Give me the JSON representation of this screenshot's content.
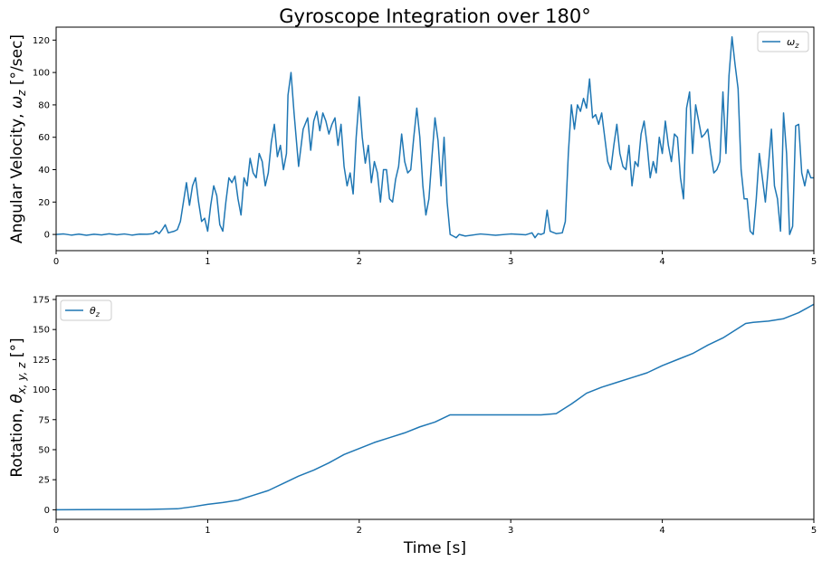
{
  "chart_data": [
    {
      "type": "line",
      "title": "Gyroscope Integration over 180°",
      "xlabel": "",
      "ylabel": "Angular Velocity, ω_z [°/sec]",
      "ylabel_parts": {
        "pre": "Angular Velocity, ",
        "sym": "ω",
        "sub": "z",
        "post": " [°/sec]"
      },
      "xlim": [
        0,
        5
      ],
      "ylim": [
        -10,
        128
      ],
      "xticks": [
        0,
        1,
        2,
        3,
        4,
        5
      ],
      "yticks": [
        0,
        20,
        40,
        60,
        80,
        100,
        120
      ],
      "grid": false,
      "legend_position": "upper-right",
      "series": [
        {
          "name": "ω_z",
          "legend_sym": "ω",
          "legend_sub": "z",
          "color": "#1f77b4",
          "points": [
            [
              0,
              0
            ],
            [
              0.05,
              0.3
            ],
            [
              0.1,
              -0.4
            ],
            [
              0.15,
              0.2
            ],
            [
              0.2,
              -0.5
            ],
            [
              0.25,
              0.1
            ],
            [
              0.3,
              -0.3
            ],
            [
              0.35,
              0.4
            ],
            [
              0.4,
              -0.2
            ],
            [
              0.45,
              0.3
            ],
            [
              0.5,
              -0.4
            ],
            [
              0.55,
              0.2
            ],
            [
              0.6,
              0.1
            ],
            [
              0.64,
              0.5
            ],
            [
              0.66,
              2
            ],
            [
              0.68,
              0.5
            ],
            [
              0.7,
              3
            ],
            [
              0.72,
              6
            ],
            [
              0.74,
              1
            ],
            [
              0.78,
              2
            ],
            [
              0.8,
              3
            ],
            [
              0.82,
              8
            ],
            [
              0.84,
              20
            ],
            [
              0.86,
              32
            ],
            [
              0.88,
              18
            ],
            [
              0.9,
              30
            ],
            [
              0.92,
              35
            ],
            [
              0.94,
              20
            ],
            [
              0.96,
              8
            ],
            [
              0.98,
              10
            ],
            [
              1.0,
              2
            ],
            [
              1.02,
              18
            ],
            [
              1.04,
              30
            ],
            [
              1.06,
              24
            ],
            [
              1.08,
              6
            ],
            [
              1.1,
              2
            ],
            [
              1.12,
              20
            ],
            [
              1.14,
              35
            ],
            [
              1.16,
              32
            ],
            [
              1.18,
              36
            ],
            [
              1.2,
              22
            ],
            [
              1.22,
              12
            ],
            [
              1.24,
              35
            ],
            [
              1.26,
              30
            ],
            [
              1.28,
              47
            ],
            [
              1.3,
              38
            ],
            [
              1.32,
              35
            ],
            [
              1.34,
              50
            ],
            [
              1.36,
              45
            ],
            [
              1.38,
              30
            ],
            [
              1.4,
              38
            ],
            [
              1.42,
              57
            ],
            [
              1.44,
              68
            ],
            [
              1.46,
              48
            ],
            [
              1.48,
              55
            ],
            [
              1.5,
              40
            ],
            [
              1.52,
              50
            ],
            [
              1.53,
              86
            ],
            [
              1.55,
              100
            ],
            [
              1.57,
              75
            ],
            [
              1.6,
              42
            ],
            [
              1.63,
              65
            ],
            [
              1.66,
              72
            ],
            [
              1.68,
              52
            ],
            [
              1.7,
              70
            ],
            [
              1.72,
              76
            ],
            [
              1.74,
              64
            ],
            [
              1.76,
              75
            ],
            [
              1.78,
              70
            ],
            [
              1.8,
              62
            ],
            [
              1.82,
              68
            ],
            [
              1.84,
              72
            ],
            [
              1.86,
              55
            ],
            [
              1.88,
              68
            ],
            [
              1.9,
              42
            ],
            [
              1.92,
              30
            ],
            [
              1.94,
              38
            ],
            [
              1.96,
              25
            ],
            [
              1.98,
              60
            ],
            [
              2.0,
              85
            ],
            [
              2.02,
              60
            ],
            [
              2.04,
              44
            ],
            [
              2.06,
              55
            ],
            [
              2.08,
              32
            ],
            [
              2.1,
              45
            ],
            [
              2.12,
              38
            ],
            [
              2.14,
              20
            ],
            [
              2.16,
              40
            ],
            [
              2.18,
              40
            ],
            [
              2.2,
              22
            ],
            [
              2.22,
              20
            ],
            [
              2.24,
              34
            ],
            [
              2.26,
              42
            ],
            [
              2.28,
              62
            ],
            [
              2.3,
              45
            ],
            [
              2.32,
              38
            ],
            [
              2.34,
              40
            ],
            [
              2.36,
              60
            ],
            [
              2.38,
              78
            ],
            [
              2.4,
              60
            ],
            [
              2.42,
              30
            ],
            [
              2.44,
              12
            ],
            [
              2.46,
              22
            ],
            [
              2.48,
              48
            ],
            [
              2.5,
              72
            ],
            [
              2.52,
              58
            ],
            [
              2.54,
              30
            ],
            [
              2.56,
              60
            ],
            [
              2.58,
              20
            ],
            [
              2.6,
              0
            ],
            [
              2.62,
              -1
            ],
            [
              2.64,
              -2
            ],
            [
              2.66,
              0
            ],
            [
              2.7,
              -1
            ],
            [
              2.8,
              0.3
            ],
            [
              2.9,
              -0.5
            ],
            [
              3.0,
              0.3
            ],
            [
              3.1,
              -0.2
            ],
            [
              3.14,
              1
            ],
            [
              3.16,
              -2
            ],
            [
              3.18,
              0.5
            ],
            [
              3.2,
              0
            ],
            [
              3.22,
              0.8
            ],
            [
              3.24,
              15
            ],
            [
              3.26,
              2
            ],
            [
              3.3,
              0.5
            ],
            [
              3.34,
              1
            ],
            [
              3.36,
              8
            ],
            [
              3.38,
              50
            ],
            [
              3.4,
              80
            ],
            [
              3.42,
              65
            ],
            [
              3.44,
              80
            ],
            [
              3.46,
              76
            ],
            [
              3.48,
              84
            ],
            [
              3.5,
              78
            ],
            [
              3.52,
              96
            ],
            [
              3.54,
              72
            ],
            [
              3.56,
              74
            ],
            [
              3.58,
              68
            ],
            [
              3.6,
              75
            ],
            [
              3.62,
              60
            ],
            [
              3.64,
              45
            ],
            [
              3.66,
              40
            ],
            [
              3.68,
              55
            ],
            [
              3.7,
              68
            ],
            [
              3.72,
              50
            ],
            [
              3.74,
              42
            ],
            [
              3.76,
              40
            ],
            [
              3.78,
              55
            ],
            [
              3.8,
              30
            ],
            [
              3.82,
              45
            ],
            [
              3.84,
              42
            ],
            [
              3.86,
              62
            ],
            [
              3.88,
              70
            ],
            [
              3.9,
              55
            ],
            [
              3.92,
              35
            ],
            [
              3.94,
              45
            ],
            [
              3.96,
              38
            ],
            [
              3.98,
              60
            ],
            [
              4.0,
              50
            ],
            [
              4.02,
              70
            ],
            [
              4.04,
              55
            ],
            [
              4.06,
              45
            ],
            [
              4.08,
              62
            ],
            [
              4.1,
              60
            ],
            [
              4.12,
              35
            ],
            [
              4.14,
              22
            ],
            [
              4.16,
              78
            ],
            [
              4.18,
              88
            ],
            [
              4.2,
              50
            ],
            [
              4.22,
              80
            ],
            [
              4.24,
              70
            ],
            [
              4.26,
              60
            ],
            [
              4.28,
              62
            ],
            [
              4.3,
              65
            ],
            [
              4.32,
              50
            ],
            [
              4.34,
              38
            ],
            [
              4.36,
              40
            ],
            [
              4.38,
              45
            ],
            [
              4.4,
              88
            ],
            [
              4.42,
              50
            ],
            [
              4.44,
              98
            ],
            [
              4.46,
              122
            ],
            [
              4.48,
              105
            ],
            [
              4.5,
              90
            ],
            [
              4.52,
              40
            ],
            [
              4.54,
              22
            ],
            [
              4.56,
              22
            ],
            [
              4.58,
              2
            ],
            [
              4.6,
              0
            ],
            [
              4.62,
              22
            ],
            [
              4.64,
              50
            ],
            [
              4.66,
              35
            ],
            [
              4.68,
              20
            ],
            [
              4.7,
              42
            ],
            [
              4.72,
              65
            ],
            [
              4.74,
              30
            ],
            [
              4.76,
              22
            ],
            [
              4.78,
              2
            ],
            [
              4.8,
              75
            ],
            [
              4.82,
              50
            ],
            [
              4.84,
              0
            ],
            [
              4.86,
              5
            ],
            [
              4.88,
              67
            ],
            [
              4.9,
              68
            ],
            [
              4.92,
              38
            ],
            [
              4.94,
              30
            ],
            [
              4.96,
              40
            ],
            [
              4.98,
              35
            ],
            [
              5.0,
              35
            ]
          ]
        }
      ]
    },
    {
      "type": "line",
      "title": "",
      "xlabel": "Time [s]",
      "ylabel": "Rotation, θ x,y,z [°]",
      "ylabel_parts": {
        "pre": "Rotation, ",
        "sym": "θ",
        "sub": "x, y, z",
        "post": " [°]"
      },
      "xlim": [
        0,
        5
      ],
      "ylim": [
        -8,
        178
      ],
      "xticks": [
        0,
        1,
        2,
        3,
        4,
        5
      ],
      "yticks": [
        0,
        25,
        50,
        75,
        100,
        125,
        150,
        175
      ],
      "grid": false,
      "legend_position": "upper-left",
      "series": [
        {
          "name": "θ_z",
          "legend_sym": "θ",
          "legend_sub": "z",
          "color": "#1f77b4",
          "points": [
            [
              0,
              0
            ],
            [
              0.3,
              0.2
            ],
            [
              0.6,
              0.3
            ],
            [
              0.8,
              0.8
            ],
            [
              0.9,
              2.5
            ],
            [
              1.0,
              4.5
            ],
            [
              1.1,
              6
            ],
            [
              1.2,
              8
            ],
            [
              1.3,
              12
            ],
            [
              1.4,
              16
            ],
            [
              1.5,
              22
            ],
            [
              1.6,
              28
            ],
            [
              1.7,
              33
            ],
            [
              1.8,
              39
            ],
            [
              1.9,
              46
            ],
            [
              2.0,
              51
            ],
            [
              2.1,
              56
            ],
            [
              2.2,
              60
            ],
            [
              2.3,
              64
            ],
            [
              2.4,
              69
            ],
            [
              2.5,
              73
            ],
            [
              2.6,
              79
            ],
            [
              2.7,
              79
            ],
            [
              3.0,
              79
            ],
            [
              3.2,
              79
            ],
            [
              3.3,
              80
            ],
            [
              3.4,
              88
            ],
            [
              3.5,
              97
            ],
            [
              3.6,
              102
            ],
            [
              3.7,
              106
            ],
            [
              3.8,
              110
            ],
            [
              3.9,
              114
            ],
            [
              4.0,
              120
            ],
            [
              4.1,
              125
            ],
            [
              4.2,
              130
            ],
            [
              4.3,
              137
            ],
            [
              4.4,
              143
            ],
            [
              4.5,
              151
            ],
            [
              4.55,
              155
            ],
            [
              4.6,
              156
            ],
            [
              4.7,
              157
            ],
            [
              4.8,
              159
            ],
            [
              4.9,
              164
            ],
            [
              5.0,
              171
            ]
          ]
        }
      ]
    }
  ]
}
